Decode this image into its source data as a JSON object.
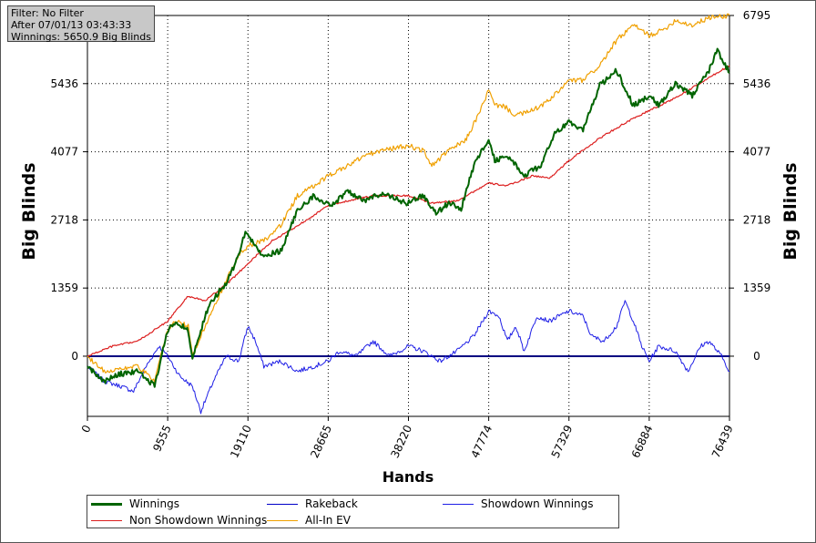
{
  "info": {
    "line1": "Filter: No Filter",
    "line2": "After 07/01/13 03:43:33",
    "line3": "Winnings: 5650.9 Big Blinds"
  },
  "chart_data": {
    "type": "line",
    "xlabel": "Hands",
    "ylabel_left": "Big Blinds",
    "ylabel_right": "Big Blinds",
    "xlim": [
      0,
      76439
    ],
    "ylim": [
      -1200,
      6795
    ],
    "x_ticks": [
      "0",
      "9555",
      "19110",
      "28665",
      "38220",
      "47774",
      "57329",
      "66884",
      "76439"
    ],
    "y_ticks": [
      "0",
      "1359",
      "2718",
      "4077",
      "5436",
      "6795"
    ],
    "y_tick_values": [
      0,
      1359,
      2718,
      4077,
      5436,
      6795
    ],
    "grid": true,
    "zero_line": true,
    "legend_position": "bottom",
    "series": [
      {
        "name": "Winnings",
        "color": "#006400",
        "width": 2,
        "x": [
          0,
          2000,
          4000,
          6000,
          8000,
          9500,
          10500,
          12000,
          12500,
          13500,
          14500,
          16500,
          18000,
          18800,
          19500,
          21000,
          23000,
          25000,
          27000,
          29000,
          31000,
          33000,
          35000,
          38000,
          40000,
          41500,
          43000,
          44500,
          46000,
          47774,
          48500,
          50000,
          52000,
          54000,
          55500,
          57329,
          59000,
          61000,
          63000,
          65000,
          66884,
          68000,
          70000,
          72000,
          74000,
          75000,
          76439
        ],
        "values": [
          -200,
          -500,
          -350,
          -300,
          -600,
          500,
          700,
          500,
          0,
          500,
          1050,
          1450,
          2000,
          2500,
          2300,
          2000,
          2100,
          2900,
          3200,
          3000,
          3300,
          3100,
          3250,
          3050,
          3200,
          2850,
          3050,
          2950,
          3800,
          4350,
          3900,
          4000,
          3600,
          3800,
          4400,
          4700,
          4500,
          5400,
          5700,
          5000,
          5200,
          5000,
          5450,
          5200,
          5700,
          6100,
          5650
        ]
      },
      {
        "name": "Non Showdown Winnings",
        "color": "#dc1e1e",
        "width": 1.2,
        "x": [
          0,
          3000,
          6000,
          9555,
          12000,
          14000,
          17000,
          19110,
          22000,
          25000,
          28665,
          31000,
          34000,
          38220,
          41000,
          44000,
          47774,
          50000,
          53000,
          55000,
          57329,
          61000,
          64000,
          66884,
          70000,
          73000,
          76439
        ],
        "values": [
          0,
          200,
          300,
          700,
          1200,
          1100,
          1500,
          1850,
          2300,
          2600,
          3000,
          3100,
          3200,
          3200,
          3050,
          3100,
          3450,
          3400,
          3600,
          3550,
          3900,
          4350,
          4650,
          4900,
          5150,
          5450,
          5800
        ]
      },
      {
        "name": "All-In EV",
        "color": "#f0a000",
        "width": 1.2,
        "x": [
          0,
          2000,
          4000,
          6000,
          8000,
          9500,
          10500,
          12000,
          12500,
          14000,
          16500,
          18000,
          19110,
          21000,
          23000,
          25000,
          27000,
          28665,
          31000,
          33000,
          35000,
          38220,
          40000,
          41000,
          43000,
          45000,
          46500,
          47774,
          48500,
          49500,
          51000,
          53000,
          55000,
          57329,
          59000,
          61000,
          63000,
          65000,
          66884,
          68500,
          70000,
          72000,
          74000,
          76439
        ],
        "values": [
          0,
          -300,
          -250,
          -200,
          -500,
          500,
          700,
          600,
          0,
          600,
          1500,
          2000,
          2200,
          2300,
          2600,
          3200,
          3400,
          3600,
          3800,
          4000,
          4100,
          4200,
          4100,
          3800,
          4100,
          4300,
          4800,
          5300,
          5000,
          5000,
          4800,
          4900,
          5100,
          5500,
          5500,
          5800,
          6300,
          6600,
          6400,
          6500,
          6700,
          6600,
          6750,
          6795
        ]
      },
      {
        "name": "Rakeback",
        "color": "#0000c8",
        "width": 1,
        "values": "not plotted — flat at 0"
      },
      {
        "name": "Showdown Winnings",
        "color": "#1e1ee6",
        "width": 1,
        "x": [
          0,
          2000,
          4000,
          5500,
          7000,
          8500,
          9555,
          11000,
          12500,
          13500,
          15000,
          16500,
          18000,
          19110,
          20000,
          21000,
          23000,
          25000,
          27000,
          28665,
          30000,
          32000,
          34000,
          36000,
          38220,
          40000,
          42000,
          44000,
          46000,
          47774,
          49000,
          50000,
          51000,
          52000,
          53500,
          55000,
          57329,
          59000,
          60000,
          61500,
          63000,
          64000,
          65000,
          66000,
          66884,
          68000,
          70000,
          71500,
          73000,
          74000,
          75500,
          76439
        ],
        "values": [
          -200,
          -500,
          -600,
          -700,
          -200,
          200,
          0,
          -400,
          -600,
          -1100,
          -500,
          0,
          -100,
          600,
          300,
          -200,
          -100,
          -300,
          -200,
          -100,
          100,
          0,
          300,
          0,
          200,
          100,
          -100,
          100,
          400,
          900,
          800,
          300,
          600,
          100,
          800,
          700,
          900,
          800,
          400,
          300,
          600,
          1100,
          700,
          200,
          -100,
          200,
          100,
          -300,
          200,
          300,
          0,
          -300
        ]
      }
    ]
  },
  "legend": {
    "items": [
      {
        "label": "Winnings",
        "color": "#006400"
      },
      {
        "label": "Non Showdown Winnings",
        "color": "#dc1e1e"
      },
      {
        "label": "Rakeback",
        "color": "#0000c8"
      },
      {
        "label": "All-In EV",
        "color": "#f0a000"
      },
      {
        "label": "Showdown Winnings",
        "color": "#1e1ee6"
      }
    ]
  }
}
